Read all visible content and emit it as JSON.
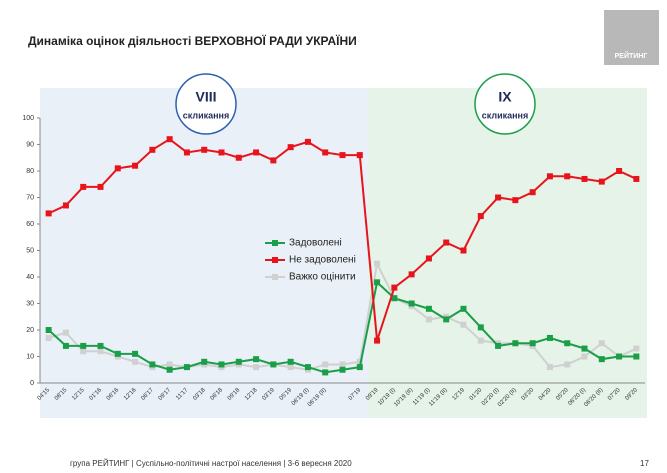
{
  "chart_data": {
    "type": "line",
    "title": "Динаміка оцінок діяльності ВЕРХОВНОЇ РАДИ УКРАЇНИ",
    "logo": "РЕЙТИНГ",
    "annotations": [
      {
        "number": "VIII",
        "text": "скликання"
      },
      {
        "number": "IX",
        "text": "скликання"
      }
    ],
    "footer": "група РЕЙТИНГ | Суспільно-політичні настрої населення | 3-6 вересня 2020",
    "page_number": "17",
    "categories": [
      "04'15",
      "08'15",
      "12'15",
      "01'16",
      "06'16",
      "12'16",
      "06'17",
      "09'17",
      "11'17",
      "03'18",
      "06'18",
      "09'18",
      "12'18",
      "03'19",
      "05'19",
      "06'19 (I)",
      "06'19 (II)",
      null,
      "07'19",
      "09'19",
      "10'19 (I)",
      "10'19 (II)",
      "11'19 (I)",
      "11'19 (II)",
      "12'19",
      "01'20",
      "02'20 (I)",
      "02'20 (II)",
      "03'20",
      "04'20",
      "05'20",
      "06'20 (I)",
      "06'20 (II)",
      "07'20",
      "09'20"
    ],
    "series": [
      {
        "name": "Задоволені",
        "color": "#1a9e48",
        "values": [
          20,
          14,
          14,
          14,
          11,
          11,
          7,
          5,
          6,
          8,
          7,
          8,
          9,
          7,
          8,
          6,
          4,
          5,
          6,
          38,
          32,
          30,
          28,
          24,
          28,
          21,
          14,
          15,
          15,
          17,
          15,
          13,
          9,
          10,
          10
        ]
      },
      {
        "name": "Не задоволені",
        "color": "#e8141b",
        "values": [
          64,
          67,
          74,
          74,
          81,
          82,
          88,
          92,
          87,
          88,
          87,
          85,
          87,
          84,
          89,
          91,
          87,
          86,
          86,
          16,
          36,
          41,
          47,
          53,
          50,
          63,
          70,
          69,
          72,
          78,
          78,
          77,
          76,
          80,
          77
        ]
      },
      {
        "name": "Важко оцінити",
        "color": "#d0d0d0",
        "values": [
          17,
          19,
          12,
          12,
          10,
          8,
          6,
          7,
          6,
          7,
          6,
          7,
          6,
          7,
          6,
          5,
          7,
          7,
          8,
          45,
          32,
          29,
          24,
          25,
          22,
          16,
          15,
          15,
          14,
          6,
          7,
          10,
          15,
          10,
          13
        ]
      }
    ],
    "ylim": [
      0,
      100
    ],
    "yticks": [
      0,
      10,
      20,
      30,
      40,
      50,
      60,
      70,
      80,
      90,
      100
    ],
    "grid": false
  }
}
